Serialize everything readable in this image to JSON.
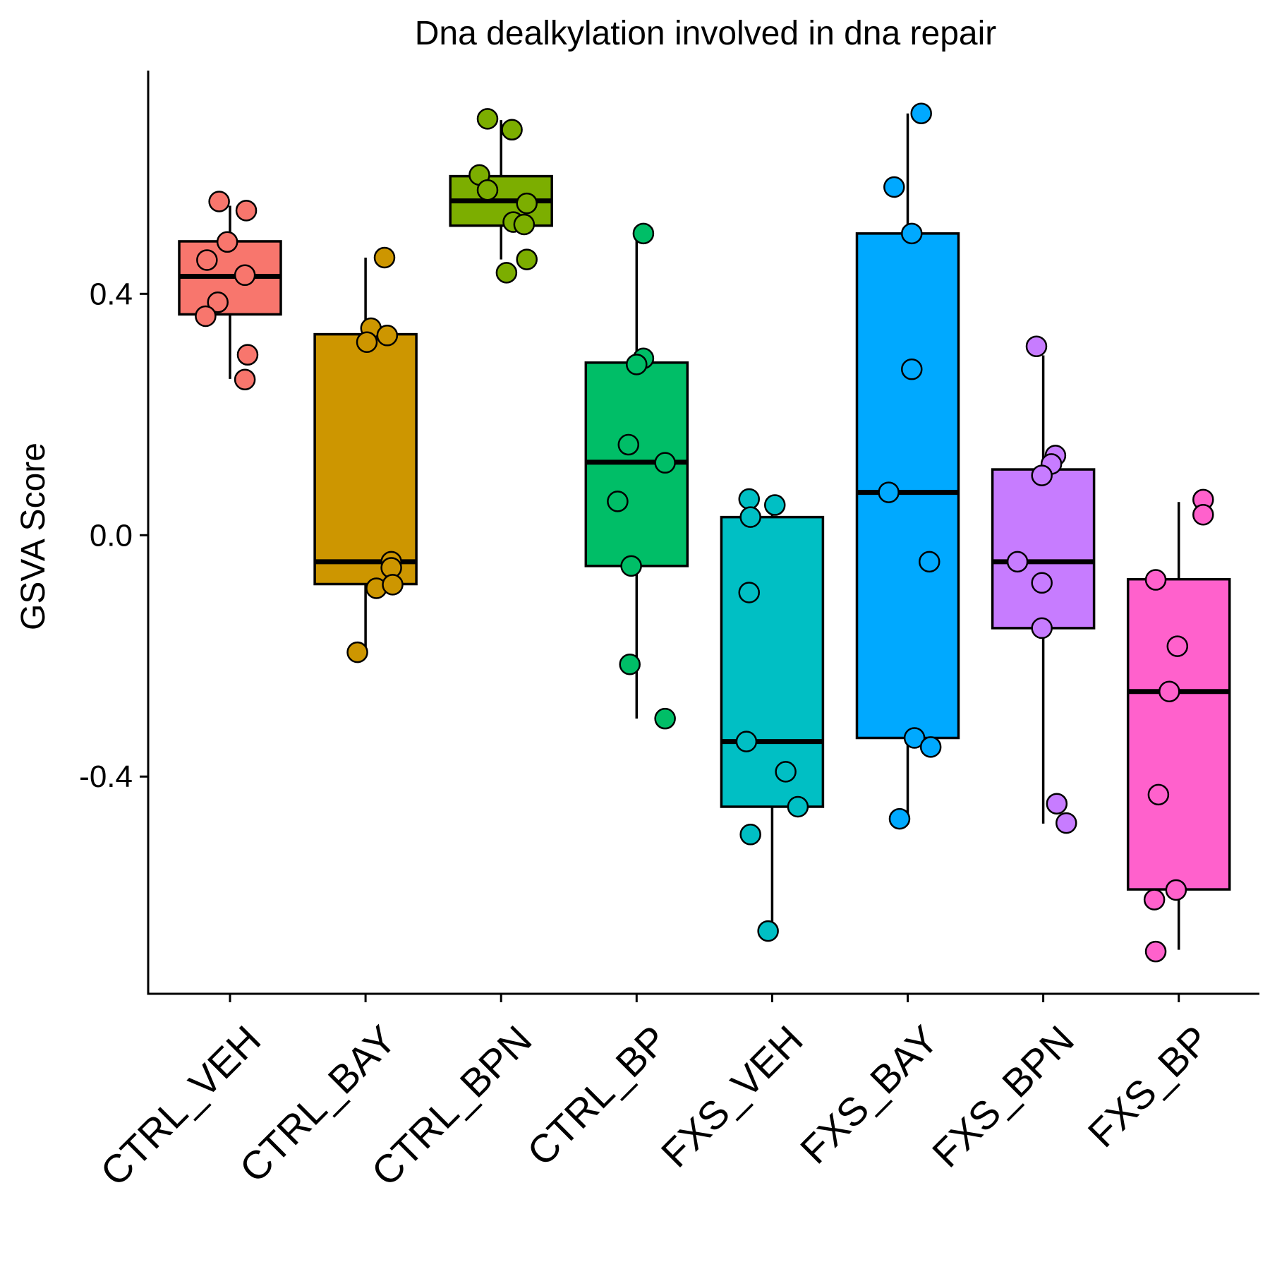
{
  "chart_data": {
    "type": "box",
    "title": "Dna dealkylation involved in dna repair",
    "xlabel": "",
    "ylabel": "GSVA Score",
    "ylim": [
      -0.76,
      0.77
    ],
    "yticks": [
      0.4,
      0.0,
      -0.4
    ],
    "ytick_labels": [
      "0.4",
      "0.0",
      "-0.4"
    ],
    "legend": "none",
    "grid": false,
    "categories": [
      "CTRL_VEH",
      "CTRL_BAY",
      "CTRL_BPN",
      "CTRL_BP",
      "FXS_VEH",
      "FXS_BAY",
      "FXS_BPN",
      "FXS_BP"
    ],
    "colors": [
      "#F8766D",
      "#CD9600",
      "#7CAE00",
      "#00BE67",
      "#00BFC4",
      "#00A9FF",
      "#C77CFF",
      "#FF61CC"
    ],
    "boxes": [
      {
        "category": "CTRL_VEH",
        "q1": 0.366,
        "median": 0.429,
        "q3": 0.487,
        "whisker_low": 0.259,
        "whisker_high": 0.546
      },
      {
        "category": "CTRL_BAY",
        "q1": -0.081,
        "median": -0.044,
        "q3": 0.333,
        "whisker_low": -0.194,
        "whisker_high": 0.46
      },
      {
        "category": "CTRL_BPN",
        "q1": 0.513,
        "median": 0.554,
        "q3": 0.595,
        "whisker_low": 0.457,
        "whisker_high": 0.688
      },
      {
        "category": "CTRL_BP",
        "q1": -0.051,
        "median": 0.121,
        "q3": 0.286,
        "whisker_low": -0.304,
        "whisker_high": 0.502
      },
      {
        "category": "FXS_VEH",
        "q1": -0.45,
        "median": -0.342,
        "q3": 0.03,
        "whisker_low": -0.656,
        "whisker_high": 0.056
      },
      {
        "category": "FXS_BAY",
        "q1": -0.336,
        "median": 0.071,
        "q3": 0.5,
        "whisker_low": -0.47,
        "whisker_high": 0.699
      },
      {
        "category": "FXS_BPN",
        "q1": -0.154,
        "median": -0.044,
        "q3": 0.109,
        "whisker_low": -0.478,
        "whisker_high": 0.298
      },
      {
        "category": "FXS_BP",
        "q1": -0.587,
        "median": -0.259,
        "q3": -0.073,
        "whisker_low": -0.687,
        "whisker_high": 0.055
      }
    ],
    "points": [
      {
        "category": "CTRL_VEH",
        "values": [
          0.553,
          0.538,
          0.486,
          0.456,
          0.431,
          0.386,
          0.363,
          0.299,
          0.258
        ],
        "jitter": [
          -0.08,
          0.12,
          -0.02,
          -0.17,
          0.11,
          -0.09,
          -0.18,
          0.13,
          0.11
        ]
      },
      {
        "category": "CTRL_BAY",
        "values": [
          0.46,
          0.343,
          0.32,
          0.331,
          -0.044,
          -0.054,
          -0.088,
          -0.082,
          -0.194
        ],
        "jitter": [
          0.14,
          0.04,
          0.01,
          0.16,
          0.19,
          0.19,
          0.08,
          0.2,
          -0.06
        ]
      },
      {
        "category": "CTRL_BPN",
        "values": [
          0.69,
          0.672,
          0.597,
          0.572,
          0.55,
          0.519,
          0.515,
          0.457,
          0.435
        ],
        "jitter": [
          -0.1,
          0.08,
          -0.16,
          -0.1,
          0.19,
          0.09,
          0.17,
          0.19,
          0.04
        ]
      },
      {
        "category": "CTRL_BP",
        "values": [
          0.5,
          0.293,
          0.283,
          0.15,
          0.12,
          0.056,
          -0.051,
          -0.214,
          -0.304
        ],
        "jitter": [
          0.05,
          0.05,
          0.0,
          -0.06,
          0.21,
          -0.14,
          -0.04,
          -0.05,
          0.21
        ]
      },
      {
        "category": "FXS_VEH",
        "values": [
          0.06,
          0.05,
          0.03,
          -0.095,
          -0.342,
          -0.392,
          -0.45,
          -0.496,
          -0.656
        ],
        "jitter": [
          -0.17,
          0.02,
          -0.16,
          -0.17,
          -0.19,
          0.1,
          0.19,
          -0.16,
          -0.03
        ]
      },
      {
        "category": "FXS_BAY",
        "values": [
          0.699,
          0.577,
          0.5,
          0.275,
          0.071,
          -0.044,
          -0.336,
          -0.351,
          -0.47
        ],
        "jitter": [
          0.1,
          -0.1,
          0.03,
          0.03,
          -0.14,
          0.16,
          0.05,
          0.17,
          -0.06
        ]
      },
      {
        "category": "FXS_BPN",
        "values": [
          0.313,
          0.132,
          0.118,
          0.099,
          -0.044,
          -0.079,
          -0.154,
          -0.445,
          -0.477
        ],
        "jitter": [
          -0.05,
          0.09,
          0.06,
          -0.01,
          -0.19,
          -0.01,
          -0.01,
          0.1,
          0.17
        ]
      },
      {
        "category": "FXS_BP",
        "values": [
          0.059,
          0.034,
          -0.074,
          -0.184,
          -0.259,
          -0.43,
          -0.588,
          -0.604,
          -0.69
        ],
        "jitter": [
          0.18,
          0.18,
          -0.17,
          -0.01,
          -0.07,
          -0.15,
          -0.02,
          -0.18,
          -0.17
        ]
      }
    ]
  }
}
